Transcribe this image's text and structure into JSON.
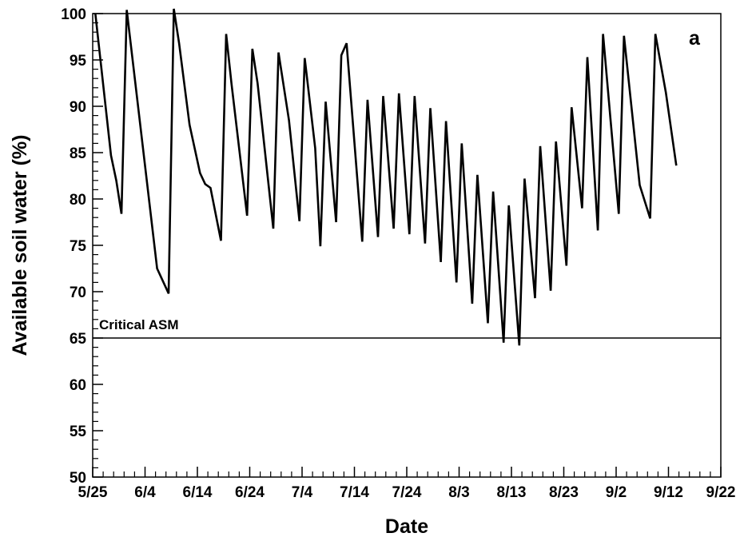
{
  "chart_data": {
    "type": "line",
    "panel_label": "a",
    "xlabel": "Date",
    "ylabel": "Available soil water (%)",
    "ylim": [
      50,
      100
    ],
    "x_unit": "day-of-season (tick labels are dates)",
    "x_ticks": [
      {
        "value": 0,
        "label": "5/25"
      },
      {
        "value": 10,
        "label": "6/4"
      },
      {
        "value": 20,
        "label": "6/14"
      },
      {
        "value": 30,
        "label": "6/24"
      },
      {
        "value": 40,
        "label": "7/4"
      },
      {
        "value": 50,
        "label": "7/14"
      },
      {
        "value": 60,
        "label": "7/24"
      },
      {
        "value": 70,
        "label": "8/3"
      },
      {
        "value": 80,
        "label": "8/13"
      },
      {
        "value": 90,
        "label": "8/23"
      },
      {
        "value": 100,
        "label": "9/2"
      },
      {
        "value": 110,
        "label": "9/12"
      },
      {
        "value": 120,
        "label": "9/22"
      }
    ],
    "xlim": [
      0,
      120
    ],
    "y_ticks": [
      {
        "value": 50,
        "label": "50"
      },
      {
        "value": 55,
        "label": "55"
      },
      {
        "value": 60,
        "label": "60"
      },
      {
        "value": 65,
        "label": "65"
      },
      {
        "value": 70,
        "label": "70"
      },
      {
        "value": 75,
        "label": "75"
      },
      {
        "value": 80,
        "label": "80"
      },
      {
        "value": 85,
        "label": "85"
      },
      {
        "value": 90,
        "label": "90"
      },
      {
        "value": 95,
        "label": "95"
      },
      {
        "value": 100,
        "label": "100"
      }
    ],
    "grid": false,
    "reference_line": {
      "value": 65,
      "label": "Critical ASM"
    },
    "series": [
      {
        "color": "#000000",
        "points": [
          [
            0.5,
            100.0
          ],
          [
            3.5,
            84.7
          ],
          [
            4.5,
            82.0
          ],
          [
            5.5,
            78.4
          ],
          [
            6.5,
            100.4
          ],
          [
            12.3,
            72.5
          ],
          [
            14.5,
            69.8
          ],
          [
            15.5,
            101.0
          ],
          [
            16.5,
            96.8
          ],
          [
            18.5,
            88.0
          ],
          [
            20.5,
            82.8
          ],
          [
            21.5,
            81.6
          ],
          [
            22.5,
            81.2
          ],
          [
            24.5,
            75.5
          ],
          [
            25.5,
            97.8
          ],
          [
            26.5,
            92.5
          ],
          [
            29.5,
            78.2
          ],
          [
            30.5,
            96.2
          ],
          [
            31.5,
            92.5
          ],
          [
            34.5,
            76.8
          ],
          [
            35.5,
            95.8
          ],
          [
            37.5,
            88.5
          ],
          [
            39.5,
            77.6
          ],
          [
            40.5,
            95.2
          ],
          [
            42.5,
            85.5
          ],
          [
            43.5,
            74.9
          ],
          [
            44.5,
            90.5
          ],
          [
            46.5,
            77.5
          ],
          [
            47.5,
            95.5
          ],
          [
            48.5,
            96.8
          ],
          [
            51.5,
            75.4
          ],
          [
            52.5,
            90.7
          ],
          [
            54.5,
            75.9
          ],
          [
            55.5,
            91.1
          ],
          [
            57.5,
            76.8
          ],
          [
            58.5,
            91.4
          ],
          [
            60.5,
            76.2
          ],
          [
            61.5,
            91.1
          ],
          [
            63.5,
            75.2
          ],
          [
            64.5,
            89.8
          ],
          [
            66.5,
            73.2
          ],
          [
            67.5,
            88.4
          ],
          [
            69.5,
            71.0
          ],
          [
            70.5,
            86.0
          ],
          [
            72.5,
            68.7
          ],
          [
            73.5,
            82.6
          ],
          [
            75.5,
            66.6
          ],
          [
            76.5,
            80.8
          ],
          [
            78.5,
            64.5
          ],
          [
            79.5,
            79.3
          ],
          [
            81.5,
            64.2
          ],
          [
            82.5,
            82.2
          ],
          [
            84.5,
            69.3
          ],
          [
            85.5,
            85.7
          ],
          [
            87.5,
            70.1
          ],
          [
            88.5,
            86.2
          ],
          [
            90.5,
            72.8
          ],
          [
            91.5,
            89.9
          ],
          [
            93.5,
            79.0
          ],
          [
            94.5,
            95.3
          ],
          [
            96.5,
            76.6
          ],
          [
            97.5,
            97.8
          ],
          [
            100.5,
            78.4
          ],
          [
            101.5,
            97.6
          ],
          [
            104.5,
            81.5
          ],
          [
            106.5,
            77.9
          ],
          [
            107.5,
            97.8
          ],
          [
            109.5,
            91.5
          ],
          [
            111.5,
            83.6
          ]
        ]
      }
    ]
  }
}
